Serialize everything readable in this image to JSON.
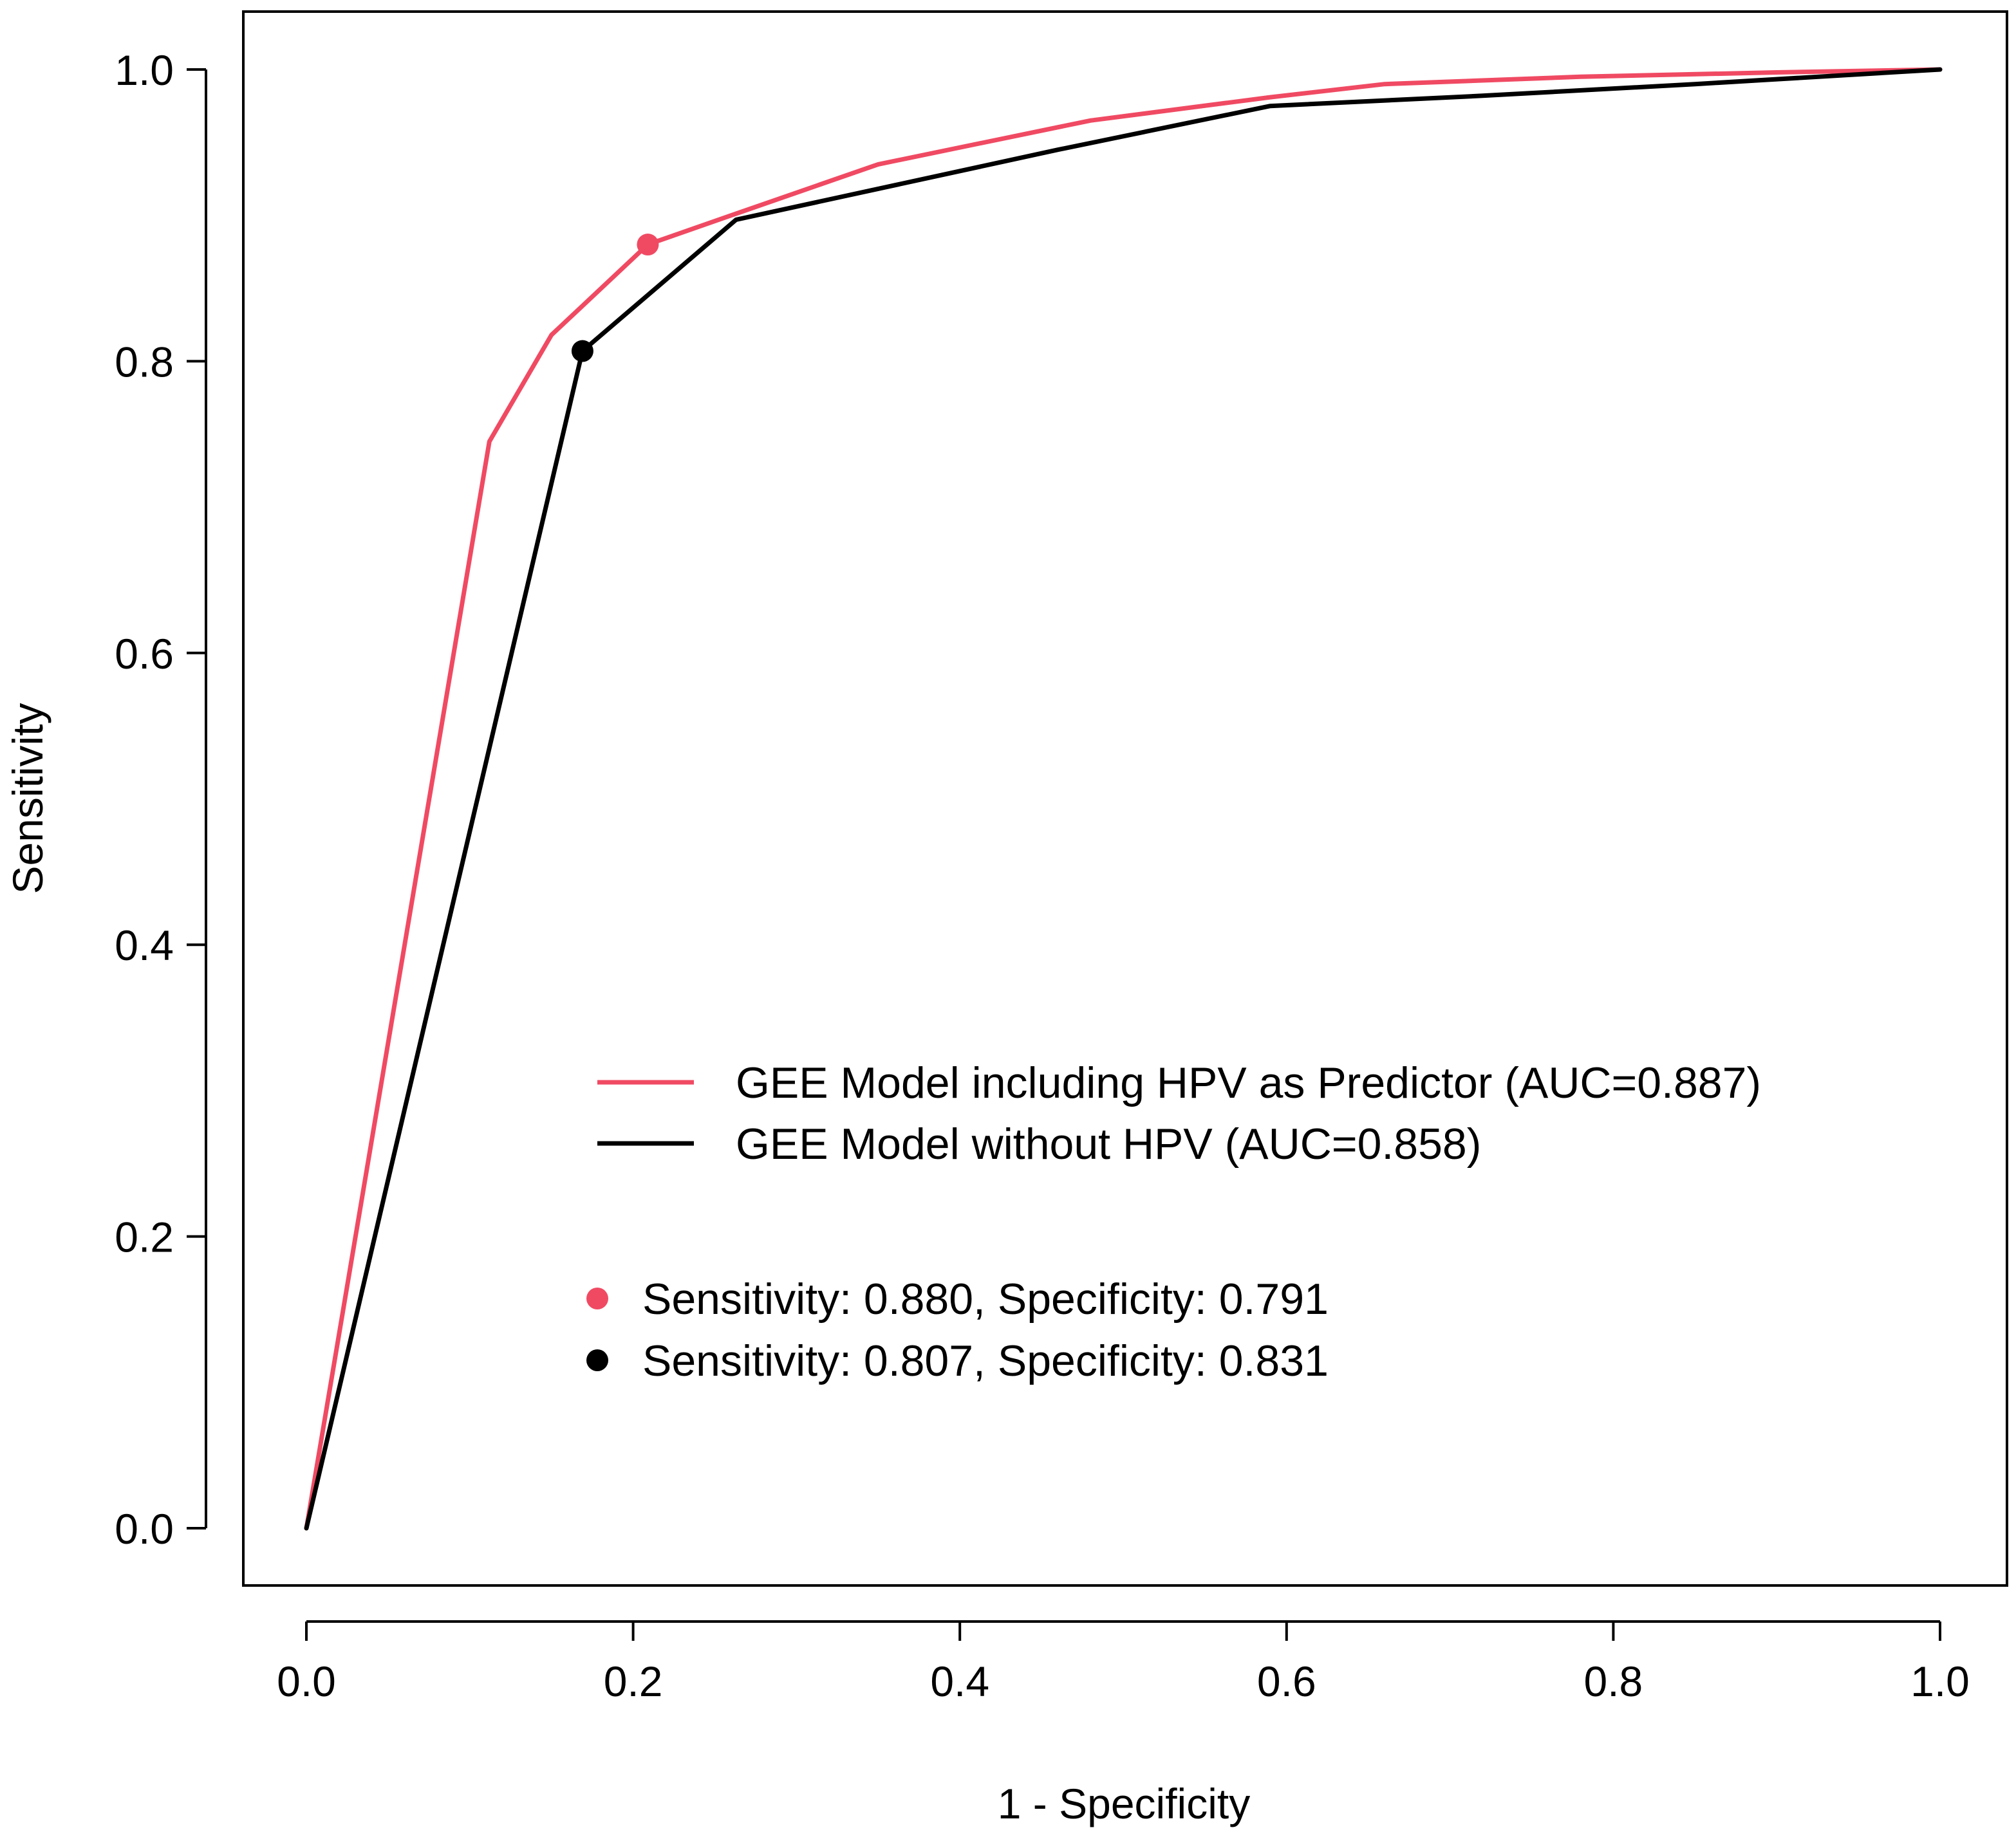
{
  "chart_data": {
    "type": "line",
    "title": "",
    "xlabel": "1 - Specificity",
    "ylabel": "Sensitivity",
    "xlim": [
      0,
      1
    ],
    "ylim": [
      0,
      1
    ],
    "x_ticks": [
      "0.0",
      "0.2",
      "0.4",
      "0.6",
      "0.8",
      "1.0"
    ],
    "y_ticks": [
      "0.0",
      "0.2",
      "0.4",
      "0.6",
      "0.8",
      "1.0"
    ],
    "grid": false,
    "legend_position": "center-right",
    "series": [
      {
        "name": "GEE Model including HPV as Predictor (AUC=0.887)",
        "color": "#f04a63",
        "x": [
          0.0,
          0.112,
          0.15,
          0.209,
          0.26,
          0.35,
          0.48,
          0.59,
          0.66,
          0.78,
          0.9,
          1.0
        ],
        "y": [
          0.0,
          0.745,
          0.818,
          0.88,
          0.9,
          0.935,
          0.965,
          0.981,
          0.99,
          0.995,
          0.998,
          1.0
        ]
      },
      {
        "name": "GEE Model without HPV (AUC=0.858)",
        "color": "#000000",
        "x": [
          0.0,
          0.169,
          0.263,
          0.46,
          0.59,
          0.72,
          0.85,
          1.0
        ],
        "y": [
          0.0,
          0.807,
          0.897,
          0.945,
          0.975,
          0.982,
          0.99,
          1.0
        ]
      }
    ],
    "points": [
      {
        "label": "Sensitivity: 0.880, Specificity: 0.791",
        "color": "#f04a63",
        "x": 0.209,
        "y": 0.88
      },
      {
        "label": "Sensitivity: 0.807, Specificity: 0.831",
        "color": "#000000",
        "x": 0.169,
        "y": 0.807
      }
    ]
  }
}
